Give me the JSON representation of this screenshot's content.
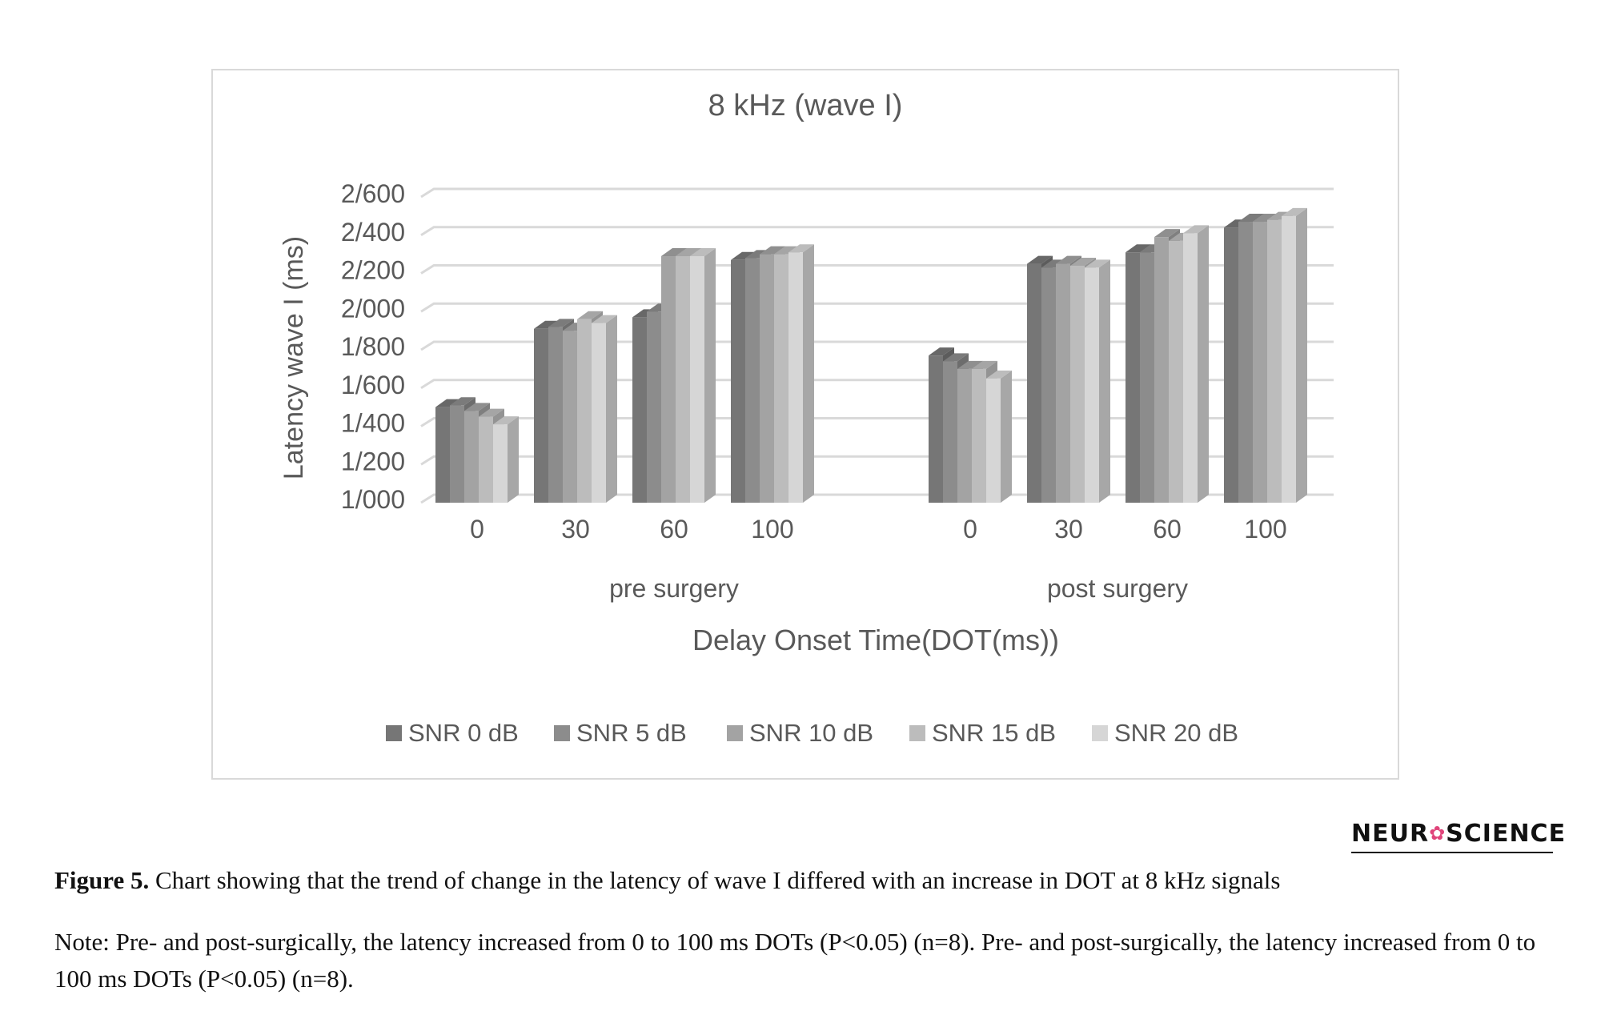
{
  "chart_data": {
    "type": "bar",
    "title": "8 kHz (wave I)",
    "ylabel": "Latency wave I (ms)",
    "xlabel": "Delay Onset Time(DOT(ms))",
    "ylim": [
      1000,
      2600
    ],
    "yticks": [
      1000,
      1200,
      1400,
      1600,
      1800,
      2000,
      2200,
      2400,
      2600
    ],
    "ytick_labels": [
      "1/000",
      "1/200",
      "1/400",
      "1/600",
      "1/800",
      "2/000",
      "2/200",
      "2/400",
      "2/600"
    ],
    "groups": [
      "pre surgery",
      "post surgery"
    ],
    "categories": [
      "0",
      "30",
      "60",
      "100",
      "0",
      "30",
      "60",
      "100"
    ],
    "series": [
      {
        "name": "SNR 0 dB",
        "color": "#767676",
        "values": [
          1500,
          1910,
          1970,
          2270,
          1770,
          2250,
          2310,
          2440
        ]
      },
      {
        "name": "SNR 5 dB",
        "color": "#8c8c8c",
        "values": [
          1510,
          1920,
          2000,
          2280,
          1740,
          2230,
          2310,
          2470
        ]
      },
      {
        "name": "SNR 10 dB",
        "color": "#a3a3a3",
        "values": [
          1480,
          1900,
          2290,
          2300,
          1700,
          2250,
          2390,
          2470
        ]
      },
      {
        "name": "SNR 15 dB",
        "color": "#bcbcbc",
        "values": [
          1450,
          1960,
          2290,
          2300,
          1700,
          2240,
          2370,
          2480
        ]
      },
      {
        "name": "SNR 20 dB",
        "color": "#d6d6d6",
        "values": [
          1410,
          1940,
          2290,
          2310,
          1650,
          2230,
          2410,
          2500
        ]
      }
    ],
    "legend_position": "bottom",
    "grid": true
  },
  "logo": {
    "left": "NEUR",
    "right": "SCIENCE"
  },
  "caption": {
    "label": "Figure 5.",
    "text": " Chart showing that the trend of change in the latency of wave I differed with an increase in DOT at 8 kHz signals"
  },
  "note": "Note: Pre- and post-surgically, the latency increased from 0 to 100 ms DOTs (P<0.05) (n=8). Pre- and post-surgically, the latency increased from 0 to 100 ms DOTs (P<0.05) (n=8)."
}
